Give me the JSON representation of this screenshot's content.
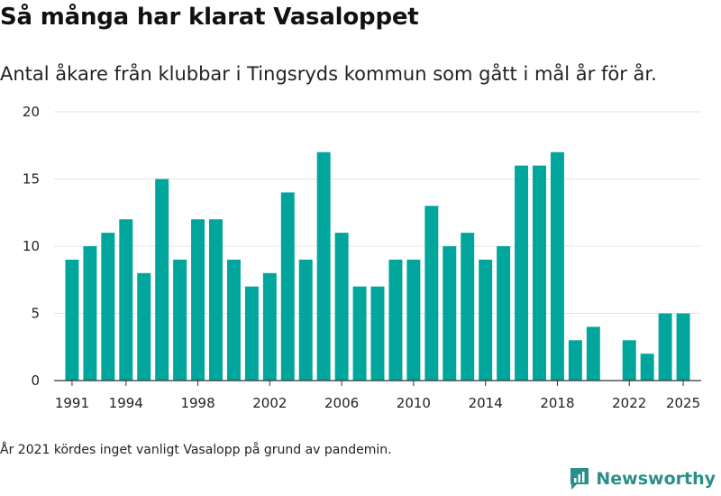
{
  "chart_data": {
    "type": "bar",
    "title": "Så många har klarat Vasaloppet",
    "subtitle": "Antal åkare från klubbar i Tingsryds kommun som gått i mål år för år.",
    "footnote": "År 2021 kördes inget vanligt Vasalopp på grund av pandemin.",
    "bar_color": "#00a69c",
    "ylim": [
      0,
      20
    ],
    "yticks": [
      0,
      5,
      10,
      15,
      20
    ],
    "xlim": [
      1990,
      2026
    ],
    "xticks": [
      1991,
      1994,
      1998,
      2002,
      2006,
      2010,
      2014,
      2018,
      2022,
      2025
    ],
    "xlabel": "",
    "ylabel": "",
    "x": [
      1991,
      1992,
      1993,
      1994,
      1995,
      1996,
      1997,
      1998,
      1999,
      2000,
      2001,
      2002,
      2003,
      2004,
      2005,
      2006,
      2007,
      2008,
      2009,
      2010,
      2011,
      2012,
      2013,
      2014,
      2015,
      2016,
      2017,
      2018,
      2019,
      2020,
      2022,
      2023,
      2024,
      2025
    ],
    "values": [
      9,
      10,
      11,
      12,
      8,
      15,
      9,
      12,
      12,
      9,
      7,
      8,
      14,
      9,
      17,
      11,
      7,
      7,
      9,
      9,
      13,
      10,
      11,
      9,
      10,
      16,
      16,
      17,
      3,
      4,
      3,
      2,
      5,
      5
    ]
  },
  "brand": {
    "name": "Newsworthy",
    "color": "#2a8f88"
  }
}
